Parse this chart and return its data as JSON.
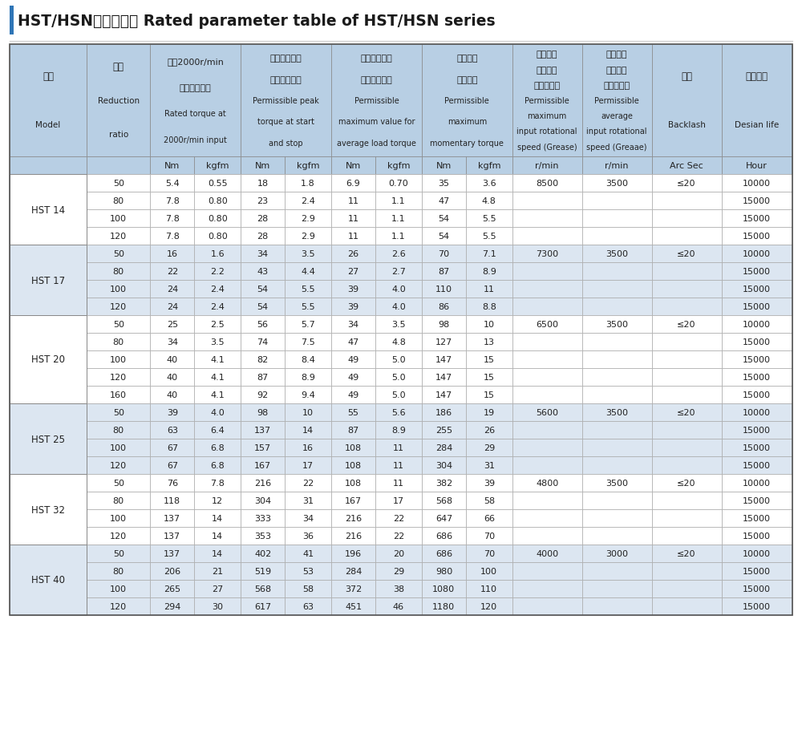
{
  "title": "HST/HSN额定参数表 Rated parameter table of HST/HSN series",
  "title_bar_color": "#2e75b6",
  "header_bg_color": "#b8cfe4",
  "group_bg_color_odd": "#dce6f1",
  "group_bg_color_even": "#ffffff",
  "border_color": "#999999",
  "dark_border_color": "#555555",
  "text_color_dark": "#222222",
  "text_color_data": "#333333",
  "subheaders": [
    "Nm",
    "kgfm",
    "Nm",
    "kgfm",
    "Nm",
    "kgfm",
    "Nm",
    "kgfm",
    "r/min",
    "r/min",
    "Arc Sec",
    "Hour"
  ],
  "groups": [
    {
      "name": "HST 14",
      "rows": [
        [
          "50",
          "5.4",
          "0.55",
          "18",
          "1.8",
          "6.9",
          "0.70",
          "35",
          "3.6",
          "8500",
          "3500",
          "≤20",
          "10000"
        ],
        [
          "80",
          "7.8",
          "0.80",
          "23",
          "2.4",
          "11",
          "1.1",
          "47",
          "4.8",
          "",
          "",
          "",
          "15000"
        ],
        [
          "100",
          "7.8",
          "0.80",
          "28",
          "2.9",
          "11",
          "1.1",
          "54",
          "5.5",
          "",
          "",
          "",
          "15000"
        ],
        [
          "120",
          "7.8",
          "0.80",
          "28",
          "2.9",
          "11",
          "1.1",
          "54",
          "5.5",
          "",
          "",
          "",
          "15000"
        ]
      ]
    },
    {
      "name": "HST 17",
      "rows": [
        [
          "50",
          "16",
          "1.6",
          "34",
          "3.5",
          "26",
          "2.6",
          "70",
          "7.1",
          "7300",
          "3500",
          "≤20",
          "10000"
        ],
        [
          "80",
          "22",
          "2.2",
          "43",
          "4.4",
          "27",
          "2.7",
          "87",
          "8.9",
          "",
          "",
          "",
          "15000"
        ],
        [
          "100",
          "24",
          "2.4",
          "54",
          "5.5",
          "39",
          "4.0",
          "110",
          "11",
          "",
          "",
          "",
          "15000"
        ],
        [
          "120",
          "24",
          "2.4",
          "54",
          "5.5",
          "39",
          "4.0",
          "86",
          "8.8",
          "",
          "",
          "",
          "15000"
        ]
      ]
    },
    {
      "name": "HST 20",
      "rows": [
        [
          "50",
          "25",
          "2.5",
          "56",
          "5.7",
          "34",
          "3.5",
          "98",
          "10",
          "6500",
          "3500",
          "≤20",
          "10000"
        ],
        [
          "80",
          "34",
          "3.5",
          "74",
          "7.5",
          "47",
          "4.8",
          "127",
          "13",
          "",
          "",
          "",
          "15000"
        ],
        [
          "100",
          "40",
          "4.1",
          "82",
          "8.4",
          "49",
          "5.0",
          "147",
          "15",
          "",
          "",
          "",
          "15000"
        ],
        [
          "120",
          "40",
          "4.1",
          "87",
          "8.9",
          "49",
          "5.0",
          "147",
          "15",
          "",
          "",
          "",
          "15000"
        ],
        [
          "160",
          "40",
          "4.1",
          "92",
          "9.4",
          "49",
          "5.0",
          "147",
          "15",
          "",
          "",
          "",
          "15000"
        ]
      ]
    },
    {
      "name": "HST 25",
      "rows": [
        [
          "50",
          "39",
          "4.0",
          "98",
          "10",
          "55",
          "5.6",
          "186",
          "19",
          "5600",
          "3500",
          "≤20",
          "10000"
        ],
        [
          "80",
          "63",
          "6.4",
          "137",
          "14",
          "87",
          "8.9",
          "255",
          "26",
          "",
          "",
          "",
          "15000"
        ],
        [
          "100",
          "67",
          "6.8",
          "157",
          "16",
          "108",
          "11",
          "284",
          "29",
          "",
          "",
          "",
          "15000"
        ],
        [
          "120",
          "67",
          "6.8",
          "167",
          "17",
          "108",
          "11",
          "304",
          "31",
          "",
          "",
          "",
          "15000"
        ]
      ]
    },
    {
      "name": "HST 32",
      "rows": [
        [
          "50",
          "76",
          "7.8",
          "216",
          "22",
          "108",
          "11",
          "382",
          "39",
          "4800",
          "3500",
          "≤20",
          "10000"
        ],
        [
          "80",
          "118",
          "12",
          "304",
          "31",
          "167",
          "17",
          "568",
          "58",
          "",
          "",
          "",
          "15000"
        ],
        [
          "100",
          "137",
          "14",
          "333",
          "34",
          "216",
          "22",
          "647",
          "66",
          "",
          "",
          "",
          "15000"
        ],
        [
          "120",
          "137",
          "14",
          "353",
          "36",
          "216",
          "22",
          "686",
          "70",
          "",
          "",
          "",
          "15000"
        ]
      ]
    },
    {
      "name": "HST 40",
      "rows": [
        [
          "50",
          "137",
          "14",
          "402",
          "41",
          "196",
          "20",
          "686",
          "70",
          "4000",
          "3000",
          "≤20",
          "10000"
        ],
        [
          "80",
          "206",
          "21",
          "519",
          "53",
          "284",
          "29",
          "980",
          "100",
          "",
          "",
          "",
          "15000"
        ],
        [
          "100",
          "265",
          "27",
          "568",
          "58",
          "372",
          "38",
          "1080",
          "110",
          "",
          "",
          "",
          "15000"
        ],
        [
          "120",
          "294",
          "30",
          "617",
          "63",
          "451",
          "46",
          "1180",
          "120",
          "",
          "",
          "",
          "15000"
        ]
      ]
    }
  ]
}
